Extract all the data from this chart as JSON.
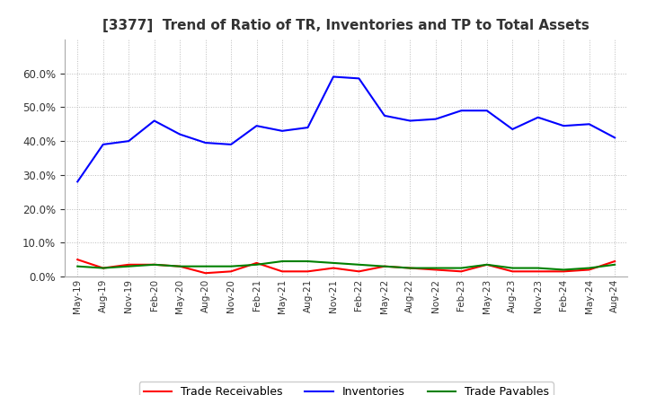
{
  "title": "[3377]  Trend of Ratio of TR, Inventories and TP to Total Assets",
  "x_labels": [
    "May-19",
    "Aug-19",
    "Nov-19",
    "Feb-20",
    "May-20",
    "Aug-20",
    "Nov-20",
    "Feb-21",
    "May-21",
    "Aug-21",
    "Nov-21",
    "Feb-22",
    "May-22",
    "Aug-22",
    "Nov-22",
    "Feb-23",
    "May-23",
    "Aug-23",
    "Nov-23",
    "Feb-24",
    "May-24",
    "Aug-24"
  ],
  "inventories": [
    28.0,
    39.0,
    40.0,
    46.0,
    42.0,
    39.5,
    39.0,
    44.5,
    43.0,
    44.0,
    59.0,
    58.5,
    47.5,
    46.0,
    46.5,
    49.0,
    49.0,
    43.5,
    47.0,
    44.5,
    45.0,
    41.0
  ],
  "trade_receivables": [
    5.0,
    2.5,
    3.5,
    3.5,
    3.0,
    1.0,
    1.5,
    4.0,
    1.5,
    1.5,
    2.5,
    1.5,
    3.0,
    2.5,
    2.0,
    1.5,
    3.5,
    1.5,
    1.5,
    1.5,
    2.0,
    4.5
  ],
  "trade_payables": [
    3.0,
    2.5,
    3.0,
    3.5,
    3.0,
    3.0,
    3.0,
    3.5,
    4.5,
    4.5,
    4.0,
    3.5,
    3.0,
    2.5,
    2.5,
    2.5,
    3.5,
    2.5,
    2.5,
    2.0,
    2.5,
    3.5
  ],
  "inventories_color": "#0000FF",
  "trade_receivables_color": "#FF0000",
  "trade_payables_color": "#008000",
  "ylim": [
    0,
    70
  ],
  "yticks": [
    0,
    10,
    20,
    30,
    40,
    50,
    60
  ],
  "background_color": "#FFFFFF",
  "grid_color": "#AAAAAA",
  "legend_labels": [
    "Trade Receivables",
    "Inventories",
    "Trade Payables"
  ]
}
